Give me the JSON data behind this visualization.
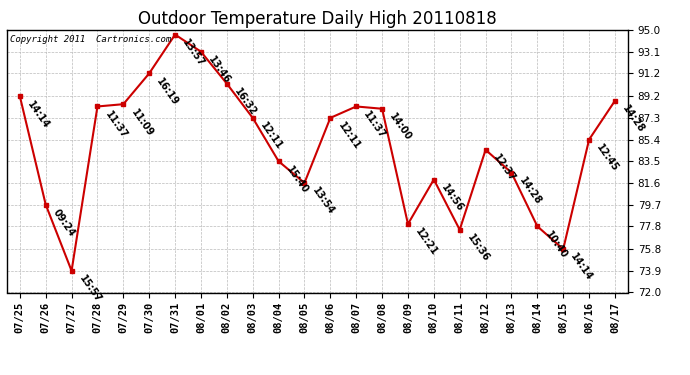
{
  "title": "Outdoor Temperature Daily High 20110818",
  "copyright": "Copyright 2011  Cartronics.com",
  "points": [
    {
      "date": "07/25",
      "time": "14:14",
      "temp": 89.2
    },
    {
      "date": "07/26",
      "time": "09:24",
      "temp": 79.7
    },
    {
      "date": "07/27",
      "time": "15:57",
      "temp": 73.9
    },
    {
      "date": "07/28",
      "time": "11:37",
      "temp": 88.3
    },
    {
      "date": "07/29",
      "time": "11:09",
      "temp": 88.5
    },
    {
      "date": "07/30",
      "time": "16:19",
      "temp": 91.2
    },
    {
      "date": "07/31",
      "time": "13:57",
      "temp": 94.6
    },
    {
      "date": "08/01",
      "time": "13:46",
      "temp": 93.1
    },
    {
      "date": "08/02",
      "time": "16:32",
      "temp": 90.3
    },
    {
      "date": "08/03",
      "time": "12:11",
      "temp": 87.3
    },
    {
      "date": "08/04",
      "time": "15:40",
      "temp": 83.5
    },
    {
      "date": "08/05",
      "time": "13:54",
      "temp": 81.6
    },
    {
      "date": "08/06",
      "time": "12:11",
      "temp": 87.3
    },
    {
      "date": "08/07",
      "time": "11:37",
      "temp": 88.3
    },
    {
      "date": "08/08",
      "time": "14:00",
      "temp": 88.1
    },
    {
      "date": "08/09",
      "time": "12:21",
      "temp": 78.0
    },
    {
      "date": "08/10",
      "time": "14:56",
      "temp": 81.9
    },
    {
      "date": "08/11",
      "time": "15:36",
      "temp": 77.5
    },
    {
      "date": "08/12",
      "time": "12:37",
      "temp": 84.5
    },
    {
      "date": "08/13",
      "time": "14:28",
      "temp": 82.5
    },
    {
      "date": "08/14",
      "time": "10:40",
      "temp": 77.8
    },
    {
      "date": "08/15",
      "time": "14:14",
      "temp": 75.8
    },
    {
      "date": "08/16",
      "time": "12:45",
      "temp": 85.4
    },
    {
      "date": "08/17",
      "time": "14:28",
      "temp": 88.8
    }
  ],
  "ylim": [
    72.0,
    95.0
  ],
  "yticks": [
    72.0,
    73.9,
    75.8,
    77.8,
    79.7,
    81.6,
    83.5,
    85.4,
    87.3,
    89.2,
    91.2,
    93.1,
    95.0
  ],
  "line_color": "#cc0000",
  "marker_color": "#cc0000",
  "bg_color": "#ffffff",
  "grid_color": "#bbbbbb",
  "title_fontsize": 12,
  "tick_fontsize": 7.5,
  "label_fontsize": 7.0
}
